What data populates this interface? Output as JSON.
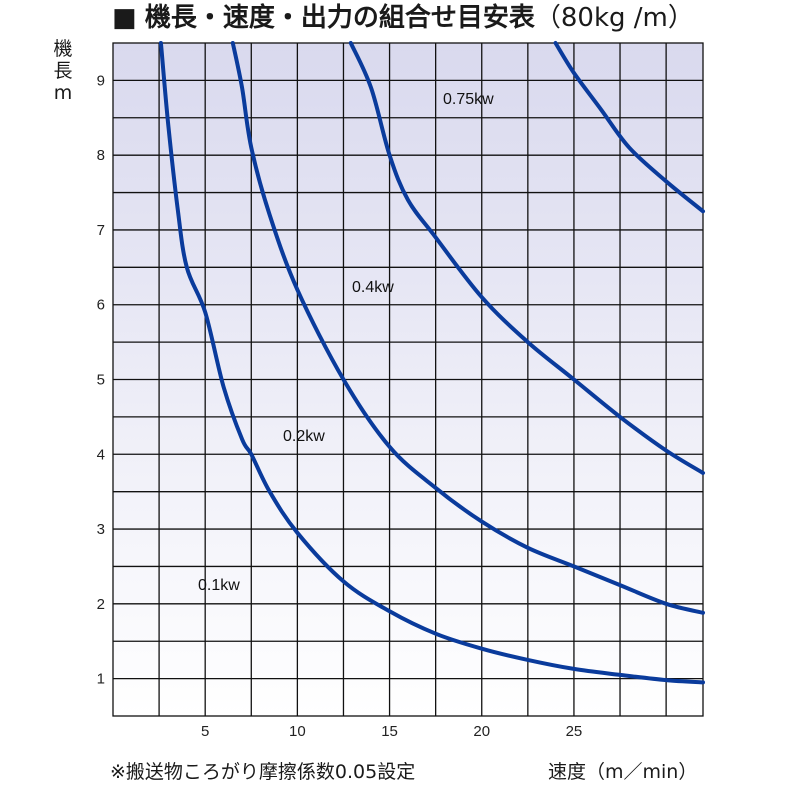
{
  "title": {
    "square": "■",
    "main": "機長・速度・出力の組合せ目安表",
    "unit": "（80kg /m）"
  },
  "footnote": "※搬送物ころがり摩擦係数0.05設定",
  "chart_data": {
    "type": "line",
    "title": "機長・速度・出力の組合せ目安表（80kg /m）",
    "xlabel": "速度（m／min）",
    "ylabel": [
      "機",
      "長",
      "m"
    ],
    "xlim": [
      0,
      32
    ],
    "ylim": [
      0.5,
      9.5
    ],
    "xticks": [
      5,
      10,
      15,
      20,
      25
    ],
    "yticks": [
      1,
      2,
      3,
      4,
      5,
      6,
      7,
      8,
      9
    ],
    "grid": true,
    "series": [
      {
        "name": "0.1kw",
        "x": [
          2.6,
          3.0,
          3.5,
          4.0,
          5.0,
          6.0,
          7.0,
          7.5,
          8.5,
          10.0,
          12.5,
          15.0,
          17.5,
          20.0,
          22.5,
          25.0,
          27.5,
          30.0,
          32.0
        ],
        "y": [
          9.5,
          8.4,
          7.3,
          6.5,
          5.9,
          4.9,
          4.2,
          4.0,
          3.5,
          2.95,
          2.3,
          1.9,
          1.6,
          1.4,
          1.25,
          1.13,
          1.05,
          0.98,
          0.95
        ]
      },
      {
        "name": "0.2kw",
        "x": [
          6.5,
          7.0,
          7.5,
          8.5,
          10.0,
          12.5,
          15.0,
          17.5,
          20.0,
          22.5,
          25.0,
          27.5,
          30.0,
          32.0
        ],
        "y": [
          9.5,
          8.9,
          8.1,
          7.2,
          6.2,
          5.0,
          4.1,
          3.55,
          3.1,
          2.75,
          2.5,
          2.25,
          2.0,
          1.88
        ]
      },
      {
        "name": "0.4kw",
        "x": [
          12.9,
          14.0,
          15.0,
          16.0,
          17.5,
          20.0,
          22.5,
          25.0,
          27.5,
          30.0,
          32.0
        ],
        "y": [
          9.5,
          8.9,
          8.0,
          7.4,
          6.9,
          6.1,
          5.5,
          5.0,
          4.5,
          4.05,
          3.75
        ]
      },
      {
        "name": "0.75kw",
        "x": [
          24.0,
          25.0,
          26.5,
          28.0,
          30.0,
          32.0
        ],
        "y": [
          9.5,
          9.1,
          8.6,
          8.1,
          7.65,
          7.25
        ]
      }
    ],
    "curve_labels": [
      "0.75kw",
      "0.4kw",
      "0.2kw",
      "0.1kw"
    ],
    "colors": {
      "curve": "#0a3b9c",
      "grid": "#111111",
      "gradient_top": "#d9d9ee",
      "gradient_bottom": "#ffffff"
    }
  }
}
